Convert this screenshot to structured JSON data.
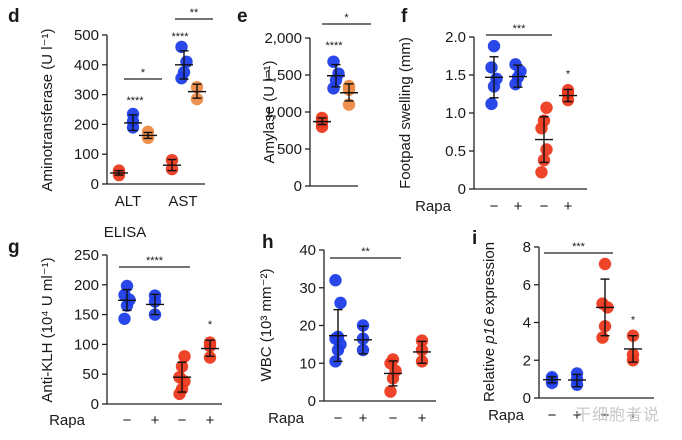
{
  "colors": {
    "blue": "#1f3ee8",
    "red": "#ec3a1f",
    "orange": "#ee8a45"
  },
  "watermark": "干细胞者说",
  "chart_data": [
    {
      "panel": "d",
      "type": "scatter",
      "ylabel": "Aminotransferase (U l⁻¹)",
      "ylim": [
        0,
        500
      ],
      "yticks": [
        0,
        100,
        200,
        300,
        400,
        500
      ],
      "ytick_labels": [
        "0",
        "100",
        "200",
        "300",
        "400",
        "500"
      ],
      "categories": [
        "ALT",
        "AST"
      ],
      "groups": [
        {
          "category": "ALT",
          "color": "red",
          "points": [
            30,
            45
          ],
          "mean": 37,
          "err": [
            30,
            45
          ]
        },
        {
          "category": "ALT",
          "color": "blue",
          "points": [
            190,
            210,
            235
          ],
          "mean": 205,
          "err": [
            180,
            232
          ]
        },
        {
          "category": "ALT",
          "color": "orange",
          "points": [
            155,
            175
          ],
          "mean": 163,
          "err": [
            153,
            173
          ]
        },
        {
          "category": "AST",
          "color": "red",
          "points": [
            50,
            80
          ],
          "mean": 63,
          "err": [
            45,
            82
          ]
        },
        {
          "category": "AST",
          "color": "blue",
          "points": [
            355,
            375,
            410,
            460
          ],
          "mean": 400,
          "err": [
            352,
            447
          ]
        },
        {
          "category": "AST",
          "color": "orange",
          "points": [
            285,
            325
          ],
          "mean": 310,
          "err": [
            288,
            335
          ]
        }
      ],
      "annotations": [
        {
          "text": "****",
          "over": "ALT-blue"
        },
        {
          "text": "*",
          "bracket": [
            "ALT-red",
            "ALT-orange"
          ]
        },
        {
          "text": "****",
          "over": "AST-blue"
        },
        {
          "text": "**",
          "bracket": [
            "AST-blue",
            "AST-orange"
          ]
        }
      ]
    },
    {
      "panel": "e",
      "type": "scatter",
      "ylabel": "Amylase (U l⁻¹)",
      "ylim": [
        0,
        2000
      ],
      "yticks": [
        0,
        500,
        1000,
        1500,
        2000
      ],
      "ytick_labels": [
        "0",
        "500",
        "1,000",
        "1,500",
        "2,000"
      ],
      "groups": [
        {
          "color": "red",
          "points": [
            800,
            860,
            920
          ],
          "mean": 870,
          "err": [
            830,
            920
          ]
        },
        {
          "color": "blue",
          "points": [
            1320,
            1430,
            1520,
            1680
          ],
          "mean": 1490,
          "err": [
            1340,
            1640
          ]
        },
        {
          "color": "orange",
          "points": [
            1100,
            1300,
            1350
          ],
          "mean": 1260,
          "err": [
            1150,
            1380
          ]
        }
      ],
      "annotations": [
        {
          "text": "****",
          "over": "blue"
        },
        {
          "text": "*",
          "bracket": [
            "red",
            "orange"
          ]
        }
      ]
    },
    {
      "panel": "f",
      "type": "scatter",
      "ylabel": "Footpad swelling (mm)",
      "ylim": [
        0,
        2.0
      ],
      "yticks": [
        0,
        0.5,
        1.0,
        1.5,
        2.0
      ],
      "ytick_labels": [
        "0",
        "0.5",
        "1.0",
        "1.5",
        "2.0"
      ],
      "xrow_label": "Rapa",
      "x_labels": [
        "−",
        "+",
        "−",
        "+"
      ],
      "groups": [
        {
          "color": "blue",
          "points": [
            1.12,
            1.35,
            1.45,
            1.6,
            1.88
          ],
          "mean": 1.47,
          "err": [
            1.2,
            1.74
          ]
        },
        {
          "color": "blue",
          "points": [
            1.38,
            1.47,
            1.55,
            1.64
          ],
          "mean": 1.48,
          "err": [
            1.34,
            1.63
          ]
        },
        {
          "color": "red",
          "points": [
            0.22,
            0.38,
            0.52,
            0.8,
            0.9,
            1.07
          ],
          "mean": 0.65,
          "err": [
            0.35,
            0.95
          ]
        },
        {
          "color": "red",
          "points": [
            1.17,
            1.25,
            1.3
          ],
          "mean": 1.23,
          "err": [
            1.15,
            1.31
          ]
        }
      ],
      "annotations": [
        {
          "text": "***",
          "bracket": [
            0,
            2
          ]
        },
        {
          "text": "*",
          "over": 3
        }
      ]
    },
    {
      "panel": "g",
      "type": "scatter",
      "title": "ELISA",
      "ylabel": "Anti-KLH (10⁴ U ml⁻¹)",
      "ylim": [
        0,
        250
      ],
      "yticks": [
        0,
        50,
        100,
        150,
        200,
        250
      ],
      "ytick_labels": [
        "0",
        "50",
        "100",
        "150",
        "200",
        "250"
      ],
      "xrow_label": "Rapa",
      "x_labels": [
        "−",
        "+",
        "−",
        "+"
      ],
      "groups": [
        {
          "color": "blue",
          "points": [
            143,
            165,
            175,
            183,
            198
          ],
          "mean": 174,
          "err": [
            157,
            192
          ]
        },
        {
          "color": "blue",
          "points": [
            150,
            172,
            182
          ],
          "mean": 167,
          "err": [
            150,
            184
          ]
        },
        {
          "color": "red",
          "points": [
            17,
            25,
            38,
            45,
            63,
            80
          ],
          "mean": 45,
          "err": [
            20,
            70
          ]
        },
        {
          "color": "red",
          "points": [
            78,
            97,
            103
          ],
          "mean": 93,
          "err": [
            80,
            107
          ]
        }
      ],
      "annotations": [
        {
          "text": "****",
          "bracket": [
            0,
            2
          ]
        },
        {
          "text": "*",
          "over": 3
        }
      ]
    },
    {
      "panel": "h",
      "type": "scatter",
      "ylabel": "WBC (10³ mm⁻²)",
      "ylim": [
        0,
        40
      ],
      "yticks": [
        0,
        10,
        20,
        30,
        40
      ],
      "ytick_labels": [
        "0",
        "10",
        "20",
        "30",
        "40"
      ],
      "xrow_label": "Rapa",
      "x_labels": [
        "−",
        "+",
        "−",
        "+"
      ],
      "groups": [
        {
          "color": "blue",
          "points": [
            10.5,
            13.5,
            15,
            16.5,
            17,
            26,
            32
          ],
          "mean": 17.3,
          "err": [
            10.5,
            24.2
          ]
        },
        {
          "color": "blue",
          "points": [
            13.5,
            16.5,
            20
          ],
          "mean": 16.2,
          "err": [
            12.5,
            19.8
          ]
        },
        {
          "color": "red",
          "points": [
            2.5,
            6,
            8,
            10,
            11
          ],
          "mean": 7.3,
          "err": [
            4,
            10.6
          ]
        },
        {
          "color": "red",
          "points": [
            10.5,
            13.5,
            16
          ],
          "mean": 13,
          "err": [
            10,
            15.8
          ]
        }
      ],
      "annotations": [
        {
          "text": "**",
          "bracket": [
            0,
            2
          ]
        }
      ]
    },
    {
      "panel": "i",
      "type": "scatter",
      "ylabel": "Relative p16 expression",
      "ylim": [
        0,
        8
      ],
      "yticks": [
        0,
        2,
        4,
        6,
        8
      ],
      "ytick_labels": [
        "0",
        "2",
        "4",
        "6",
        "8"
      ],
      "xrow_label": "Rapa",
      "x_labels": [
        "−",
        "+",
        "−",
        "+"
      ],
      "groups": [
        {
          "color": "blue",
          "points": [
            0.8,
            1.0,
            1.1
          ],
          "mean": 0.97,
          "err": [
            0.8,
            1.12
          ]
        },
        {
          "color": "blue",
          "points": [
            0.7,
            1.0,
            1.3
          ],
          "mean": 0.95,
          "err": [
            0.6,
            1.25
          ]
        },
        {
          "color": "red",
          "points": [
            3.2,
            3.8,
            4.8,
            5.0,
            7.1
          ],
          "mean": 4.8,
          "err": [
            3.3,
            6.3
          ]
        },
        {
          "color": "red",
          "points": [
            2.0,
            2.3,
            3.3
          ],
          "mean": 2.6,
          "err": [
            1.9,
            3.3
          ]
        }
      ],
      "annotations": [
        {
          "text": "***",
          "bracket": [
            0,
            2
          ]
        },
        {
          "text": "*",
          "over": 3
        }
      ]
    }
  ]
}
